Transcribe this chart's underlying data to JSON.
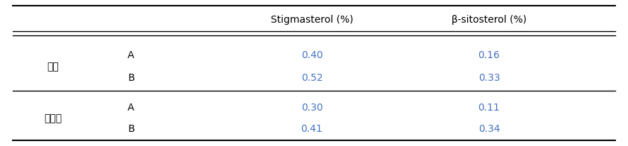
{
  "col_headers": [
    "",
    "",
    "Stigmasterol (%)",
    "β-sitosterol (%)"
  ],
  "rows": [
    {
      "group": "국산",
      "sub": "A",
      "stigmasterol": "0.40",
      "sitosterol": "0.16"
    },
    {
      "group": "",
      "sub": "B",
      "stigmasterol": "0.52",
      "sitosterol": "0.33"
    },
    {
      "group": "중국산",
      "sub": "A",
      "stigmasterol": "0.30",
      "sitosterol": "0.11"
    },
    {
      "group": "",
      "sub": "B",
      "stigmasterol": "0.41",
      "sitosterol": "0.34"
    }
  ],
  "value_color": "#4472C4",
  "header_color": "#000000",
  "group_color": "#000000",
  "sub_color": "#000000",
  "background_color": "#ffffff",
  "font_size": 10,
  "header_font_size": 10
}
